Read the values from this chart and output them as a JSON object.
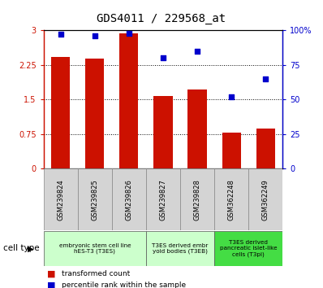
{
  "title": "GDS4011 / 229568_at",
  "samples": [
    "GSM239824",
    "GSM239825",
    "GSM239826",
    "GSM239827",
    "GSM239828",
    "GSM362248",
    "GSM362249"
  ],
  "bar_values": [
    2.42,
    2.38,
    2.93,
    1.57,
    1.71,
    0.78,
    0.87
  ],
  "dot_values": [
    97,
    96,
    98,
    80,
    85,
    52,
    65
  ],
  "bar_color": "#cc1100",
  "dot_color": "#0000cc",
  "ylim_left": [
    0,
    3
  ],
  "ylim_right": [
    0,
    100
  ],
  "yticks_left": [
    0,
    0.75,
    1.5,
    2.25,
    3
  ],
  "ytick_labels_left": [
    "0",
    "0.75",
    "1.5",
    "2.25",
    "3"
  ],
  "yticks_right": [
    0,
    25,
    50,
    75,
    100
  ],
  "ytick_labels_right": [
    "0",
    "25",
    "50",
    "75",
    "100%"
  ],
  "cell_type_groups": [
    {
      "label": "embryonic stem cell line\nhES-T3 (T3ES)",
      "start": 0,
      "end": 2,
      "color": "#ccffcc"
    },
    {
      "label": "T3ES derived embr\nyoid bodies (T3EB)",
      "start": 3,
      "end": 4,
      "color": "#ccffcc"
    },
    {
      "label": "T3ES derived\npancreatic islet-like\ncells (T3pi)",
      "start": 5,
      "end": 6,
      "color": "#44ee44"
    }
  ],
  "legend_bar_label": "transformed count",
  "legend_dot_label": "percentile rank within the sample",
  "cell_type_label": "cell type",
  "bar_width": 0.55
}
